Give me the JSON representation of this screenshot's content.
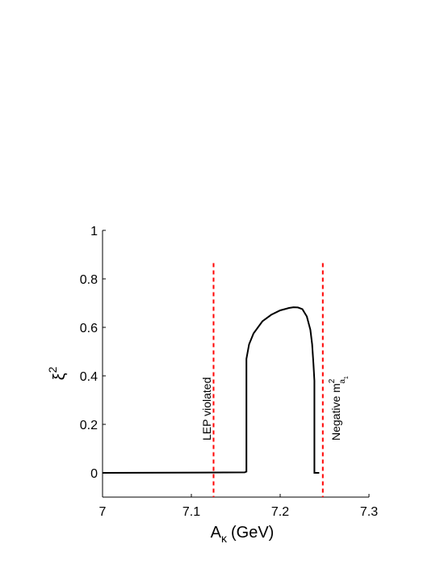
{
  "chart_data": {
    "type": "line",
    "xlabel_main": "A",
    "xlabel_sub": "κ",
    "xlabel_unit": "(GeV)",
    "ylabel_main": "ξ",
    "ylabel_sup": "2",
    "xlim": [
      7.0,
      7.3
    ],
    "ylim": [
      -0.1,
      1.0
    ],
    "x_ticks": [
      7.0,
      7.1,
      7.2,
      7.3
    ],
    "x_tick_labels": [
      "7",
      "7.1",
      "7.2",
      "7.3"
    ],
    "y_ticks": [
      0,
      0.2,
      0.4,
      0.6,
      0.8,
      1
    ],
    "y_tick_labels": [
      "0",
      "0.2",
      "0.4",
      "0.6",
      "0.8",
      "1"
    ],
    "grid": false,
    "series": [
      {
        "color": "#000000",
        "x": [
          7.0,
          7.16,
          7.162,
          7.162,
          7.165,
          7.17,
          7.18,
          7.19,
          7.2,
          7.21,
          7.215,
          7.22,
          7.225,
          7.23,
          7.234,
          7.236,
          7.2375,
          7.2385,
          7.2385,
          7.244
        ],
        "y": [
          0.0,
          0.002,
          0.005,
          0.47,
          0.53,
          0.575,
          0.625,
          0.652,
          0.67,
          0.68,
          0.683,
          0.682,
          0.675,
          0.645,
          0.59,
          0.53,
          0.45,
          0.38,
          0.0,
          0.0
        ]
      }
    ],
    "reference_lines": [
      {
        "x": 7.125,
        "color": "#ff0000",
        "style": "dashed",
        "y_top": 0.865,
        "label": "LEP violated"
      },
      {
        "x": 7.248,
        "color": "#ff0000",
        "style": "dashed",
        "y_top": 0.865,
        "label_main": "Negative m",
        "label_sup": "2",
        "label_sub": "a",
        "label_subsub": "1"
      }
    ]
  }
}
